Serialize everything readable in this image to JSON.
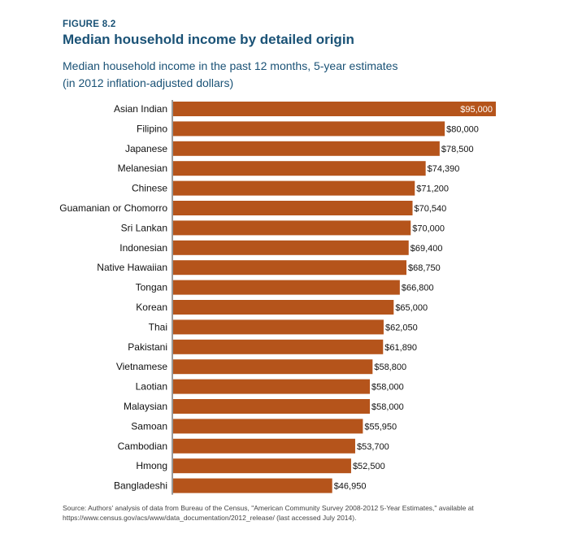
{
  "header": {
    "figure_label": "FIGURE 8.2",
    "title": "Median household income by detailed origin",
    "subtitle_line1": "Median household income in the past 12 months, 5-year estimates",
    "subtitle_line2": "(in 2012 inflation-adjusted dollars)"
  },
  "chart_data": {
    "type": "bar",
    "orientation": "horizontal",
    "title": "Median household income by detailed origin",
    "xlabel": "",
    "ylabel": "",
    "xlim": [
      0,
      95000
    ],
    "grid": false,
    "bar_color": "#b5541b",
    "categories": [
      "Asian Indian",
      "Filipino",
      "Japanese",
      "Melanesian",
      "Chinese",
      "Guamanian or Chomorro",
      "Sri Lankan",
      "Indonesian",
      "Native Hawaiian",
      "Tongan",
      "Korean",
      "Thai",
      "Pakistani",
      "Vietnamese",
      "Laotian",
      "Malaysian",
      "Samoan",
      "Cambodian",
      "Hmong",
      "Bangladeshi"
    ],
    "values": [
      95000,
      80000,
      78500,
      74390,
      71200,
      70540,
      70000,
      69400,
      68750,
      66800,
      65000,
      62050,
      61890,
      58800,
      58000,
      58000,
      55950,
      53700,
      52500,
      46950
    ],
    "value_labels": [
      "$95,000",
      "$80,000",
      "$78,500",
      "$74,390",
      "$71,200",
      "$70,540",
      "$70,000",
      "$69,400",
      "$68,750",
      "$66,800",
      "$65,000",
      "$62,050",
      "$61,890",
      "$58,800",
      "$58,000",
      "$58,000",
      "$55,950",
      "$53,700",
      "$52,500",
      "$46,950"
    ]
  },
  "source": {
    "line1": "Source: Authors' analysis of data from Bureau of the Census, \"American Community Survey 2008-2012 5-Year Estimates,\" available at",
    "line2": "https://www.census.gov/acs/www/data_documentation/2012_release/ (last accessed July 2014)."
  }
}
